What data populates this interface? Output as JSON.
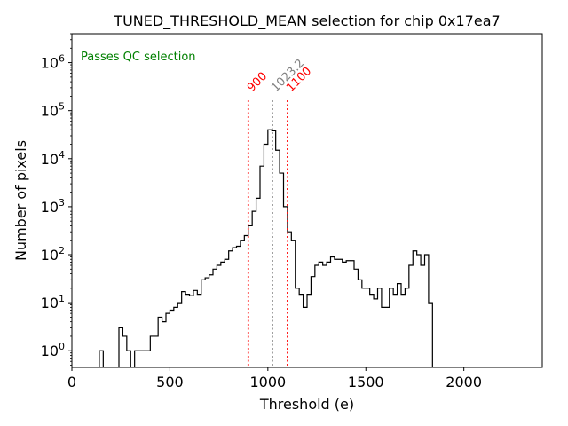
{
  "chart_data": {
    "type": "histogram",
    "title": "TUNED_THRESHOLD_MEAN selection for chip 0x17ea7",
    "xlabel": "Threshold (e)",
    "ylabel": "Number of pixels",
    "xlim": [
      0,
      2400
    ],
    "ylim": [
      0.45,
      4000000
    ],
    "yscale": "log",
    "x_ticks": [
      0,
      500,
      1000,
      1500,
      2000
    ],
    "x_tick_labels": [
      "0",
      "500",
      "1000",
      "1500",
      "2000"
    ],
    "y_ticks": [
      1,
      10,
      100,
      1000,
      10000,
      100000,
      1000000
    ],
    "y_tick_labels": [
      {
        "base": "10",
        "exp": "0"
      },
      {
        "base": "10",
        "exp": "1"
      },
      {
        "base": "10",
        "exp": "2"
      },
      {
        "base": "10",
        "exp": "3"
      },
      {
        "base": "10",
        "exp": "4"
      },
      {
        "base": "10",
        "exp": "5"
      },
      {
        "base": "10",
        "exp": "6"
      }
    ],
    "bin_width": 20,
    "bins": [
      [
        140,
        1
      ],
      [
        240,
        3
      ],
      [
        260,
        2
      ],
      [
        280,
        1
      ],
      [
        320,
        1
      ],
      [
        340,
        1
      ],
      [
        360,
        1
      ],
      [
        380,
        1
      ],
      [
        400,
        2
      ],
      [
        420,
        2
      ],
      [
        440,
        5
      ],
      [
        460,
        4
      ],
      [
        480,
        6
      ],
      [
        500,
        7
      ],
      [
        520,
        8
      ],
      [
        540,
        10
      ],
      [
        560,
        17
      ],
      [
        580,
        15
      ],
      [
        600,
        14
      ],
      [
        620,
        18
      ],
      [
        640,
        15
      ],
      [
        660,
        30
      ],
      [
        680,
        33
      ],
      [
        700,
        38
      ],
      [
        720,
        50
      ],
      [
        740,
        60
      ],
      [
        760,
        70
      ],
      [
        780,
        80
      ],
      [
        800,
        120
      ],
      [
        820,
        140
      ],
      [
        840,
        150
      ],
      [
        860,
        200
      ],
      [
        880,
        250
      ],
      [
        900,
        400
      ],
      [
        920,
        800
      ],
      [
        940,
        1500
      ],
      [
        960,
        7000
      ],
      [
        980,
        20000
      ],
      [
        1000,
        40000
      ],
      [
        1020,
        38000
      ],
      [
        1040,
        15000
      ],
      [
        1060,
        5000
      ],
      [
        1080,
        1000
      ],
      [
        1100,
        300
      ],
      [
        1120,
        200
      ],
      [
        1140,
        20
      ],
      [
        1160,
        15
      ],
      [
        1180,
        8
      ],
      [
        1200,
        15
      ],
      [
        1220,
        35
      ],
      [
        1240,
        60
      ],
      [
        1260,
        70
      ],
      [
        1280,
        60
      ],
      [
        1300,
        70
      ],
      [
        1320,
        90
      ],
      [
        1340,
        80
      ],
      [
        1360,
        80
      ],
      [
        1380,
        70
      ],
      [
        1400,
        75
      ],
      [
        1420,
        75
      ],
      [
        1440,
        50
      ],
      [
        1460,
        30
      ],
      [
        1480,
        20
      ],
      [
        1500,
        20
      ],
      [
        1520,
        15
      ],
      [
        1540,
        12
      ],
      [
        1560,
        20
      ],
      [
        1580,
        8
      ],
      [
        1600,
        8
      ],
      [
        1620,
        20
      ],
      [
        1640,
        15
      ],
      [
        1660,
        25
      ],
      [
        1680,
        15
      ],
      [
        1700,
        20
      ],
      [
        1720,
        60
      ],
      [
        1740,
        120
      ],
      [
        1760,
        100
      ],
      [
        1780,
        60
      ],
      [
        1800,
        100
      ],
      [
        1820,
        10
      ]
    ],
    "vlines": [
      {
        "x": 900,
        "label": "900",
        "color": "#ff0000"
      },
      {
        "x": 1023.2,
        "label": "1023.2",
        "color": "#808080"
      },
      {
        "x": 1100,
        "label": "1100",
        "color": "#ff0000"
      }
    ],
    "annotation": {
      "text": "Passes QC selection",
      "color": "#008000"
    },
    "colors": {
      "histogram": "#000000",
      "axes": "#000000"
    }
  }
}
